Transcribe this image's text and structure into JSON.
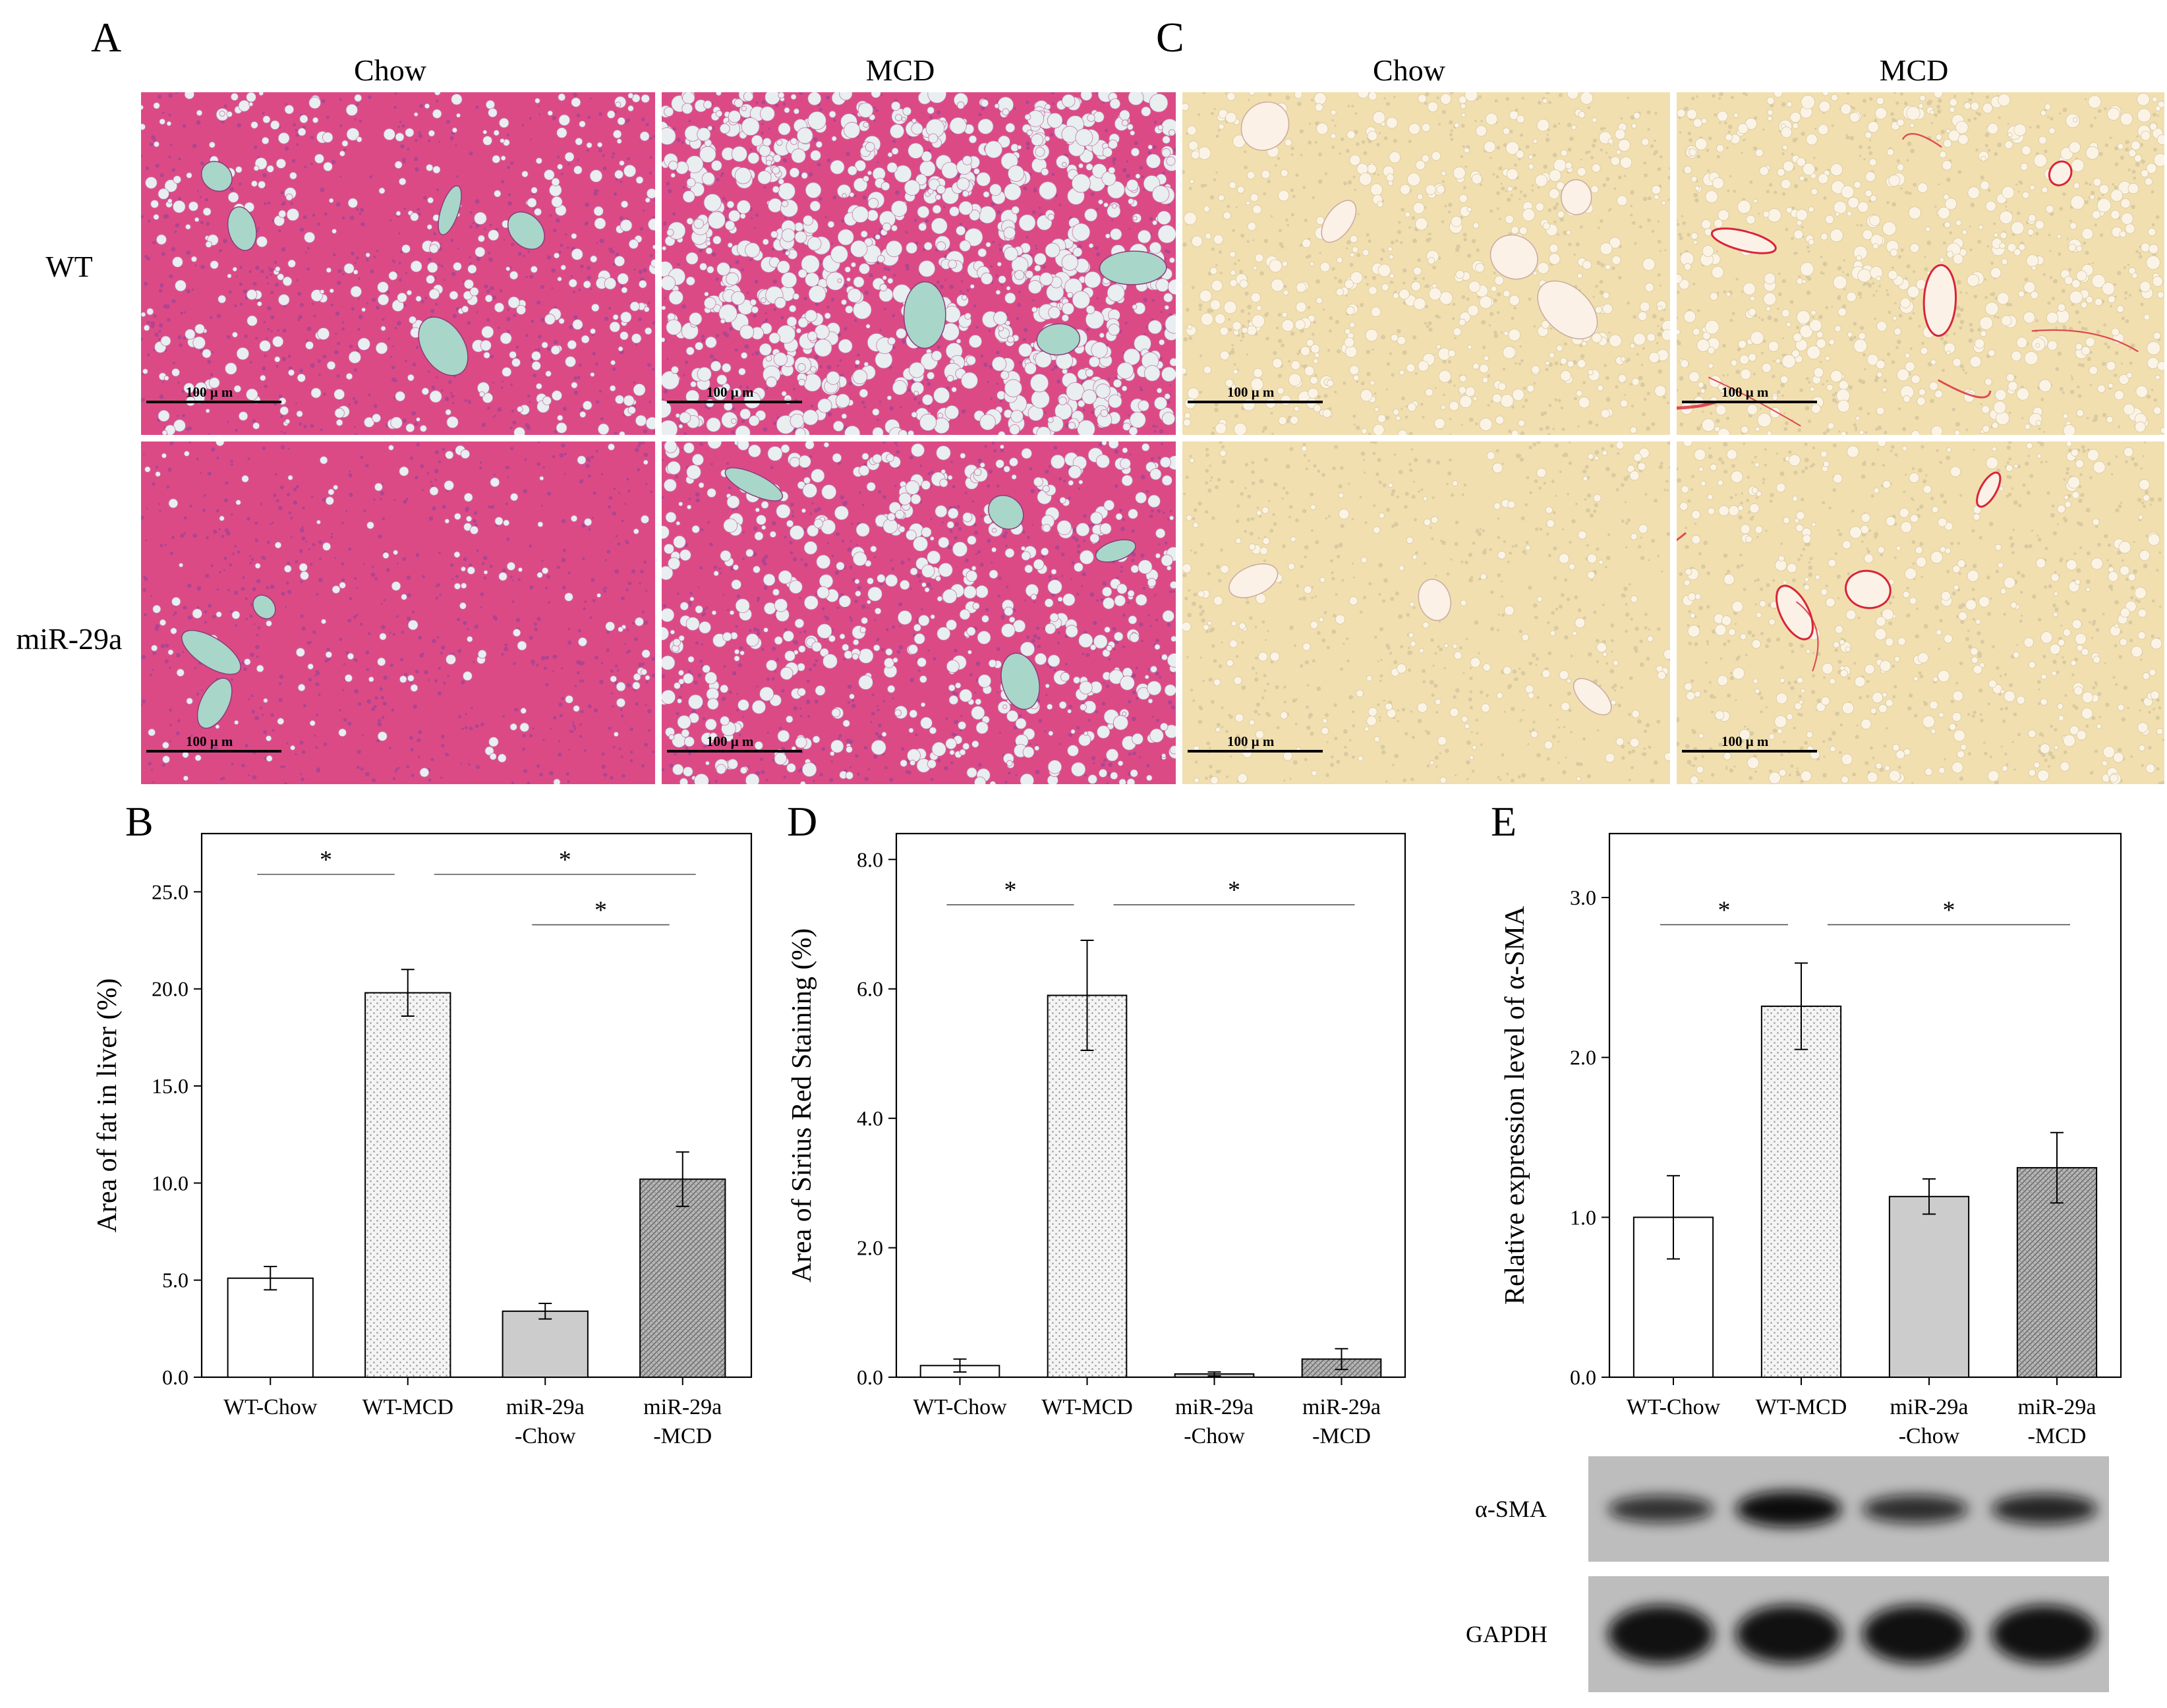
{
  "panels": {
    "A": {
      "letter": "A",
      "col_labels": [
        "Chow",
        "MCD"
      ],
      "row_labels": [
        "WT",
        "miR-29a"
      ],
      "scale_bar_label": "100 μ m",
      "tissue_color": "#dc4a86",
      "vessel_color": "#a8d6c8"
    },
    "C": {
      "letter": "C",
      "col_labels": [
        "Chow",
        "MCD"
      ],
      "scale_bar_label": "100 μ m",
      "tissue_color": "#f1dfb0",
      "vessel_color": "#fbf1e6",
      "fibrosis_color": "#d8243a"
    },
    "B": {
      "letter": "B"
    },
    "D": {
      "letter": "D"
    },
    "E": {
      "letter": "E",
      "blot_labels": [
        "α-SMA",
        "GAPDH"
      ],
      "blot_intensity": {
        "alpha_sma": [
          0.55,
          1.0,
          0.6,
          0.7
        ],
        "gapdh": [
          0.95,
          0.95,
          0.95,
          0.95
        ]
      }
    }
  },
  "chart_data": [
    {
      "id": "B",
      "type": "bar",
      "categories": [
        [
          "WT-Chow"
        ],
        [
          "WT-MCD"
        ],
        [
          "miR-29a",
          "-Chow"
        ],
        [
          "miR-29a",
          "-MCD"
        ]
      ],
      "values": [
        5.1,
        19.8,
        3.4,
        10.2
      ],
      "errors": [
        0.6,
        1.2,
        0.4,
        1.4
      ],
      "ylabel": "Area of fat in liver  (%)",
      "ylim": [
        0,
        28
      ],
      "yticks": [
        0,
        5,
        10,
        15,
        20,
        25
      ],
      "ytick_labels": [
        "0.0",
        "5.0",
        "10.0",
        "15.0",
        "20.0",
        "25.0"
      ],
      "significance": [
        {
          "from": 0,
          "to": 1,
          "y": 25.9,
          "label": "*"
        },
        {
          "from": 1,
          "to": 3,
          "y": 25.9,
          "label": "*"
        },
        {
          "from": 2,
          "to": 3,
          "y": 23.3,
          "label": "*"
        }
      ],
      "bar_patterns": [
        "none",
        "dots-light",
        "solid-gray",
        "dense-dark"
      ]
    },
    {
      "id": "D",
      "type": "bar",
      "categories": [
        [
          "WT-Chow"
        ],
        [
          "WT-MCD"
        ],
        [
          "miR-29a",
          "-Chow"
        ],
        [
          "miR-29a",
          "-MCD"
        ]
      ],
      "values": [
        0.18,
        5.9,
        0.05,
        0.28
      ],
      "errors": [
        0.1,
        0.85,
        0.03,
        0.16
      ],
      "ylabel": "Area of Sirius Red Staining (%)",
      "ylim": [
        0,
        8.4
      ],
      "yticks": [
        0,
        2,
        4,
        6,
        8
      ],
      "ytick_labels": [
        "0.0",
        "2.0",
        "4.0",
        "6.0",
        "8.0"
      ],
      "significance": [
        {
          "from": 0,
          "to": 1,
          "y": 7.3,
          "label": "*"
        },
        {
          "from": 1,
          "to": 3,
          "y": 7.3,
          "label": "*"
        }
      ],
      "bar_patterns": [
        "none",
        "dots-light",
        "solid-gray",
        "dense-dark"
      ]
    },
    {
      "id": "E",
      "type": "bar",
      "categories": [
        [
          "WT-Chow"
        ],
        [
          "WT-MCD"
        ],
        [
          "miR-29a",
          "-Chow"
        ],
        [
          "miR-29a",
          "-MCD"
        ]
      ],
      "values": [
        1.0,
        2.32,
        1.13,
        1.31
      ],
      "errors": [
        0.26,
        0.27,
        0.11,
        0.22
      ],
      "ylabel": "Relative expression level of α-SMA",
      "ylim": [
        0,
        3.4
      ],
      "yticks": [
        0,
        1,
        2,
        3
      ],
      "ytick_labels": [
        "0.0",
        "1.0",
        "2.0",
        "3.0"
      ],
      "significance": [
        {
          "from": 0,
          "to": 1,
          "y": 2.83,
          "label": "*"
        },
        {
          "from": 1,
          "to": 3,
          "y": 2.83,
          "label": "*"
        }
      ],
      "bar_patterns": [
        "none",
        "dots-light",
        "solid-gray",
        "dense-dark"
      ]
    }
  ]
}
